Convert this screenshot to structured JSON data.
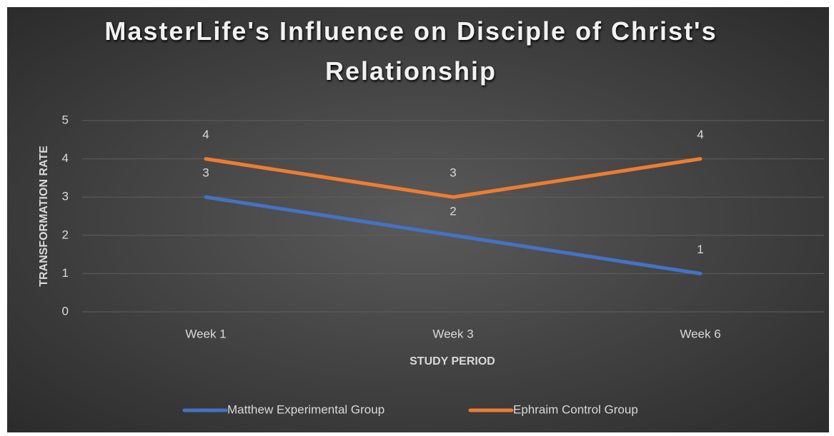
{
  "chart_data": {
    "type": "line",
    "title": "MasterLife's Influence on Disciple of Christ's Relationship",
    "x_label": "STUDY PERIOD",
    "y_label": "TRANSFORMATION RATE",
    "categories": [
      "Week 1",
      "Week 3",
      "Week 6"
    ],
    "series": [
      {
        "name": "Matthew Experimental Group",
        "color": "#4472c4",
        "values": [
          3,
          2,
          1
        ]
      },
      {
        "name": "Ephraim Control Group",
        "color": "#ed7d31",
        "values": [
          4,
          3,
          4
        ]
      }
    ],
    "ylim": [
      0,
      5
    ],
    "yticks": [
      0,
      1,
      2,
      3,
      4,
      5
    ],
    "grid": true,
    "legend": "bottom"
  }
}
